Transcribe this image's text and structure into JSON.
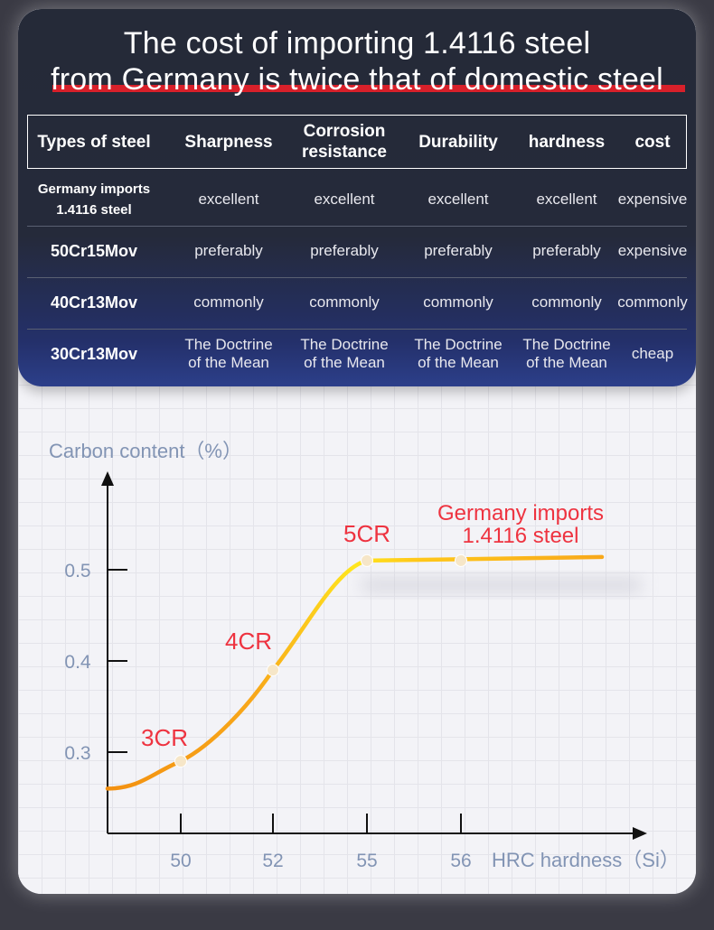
{
  "title": {
    "line1": "The cost of importing 1.4116 steel",
    "line2": "from Germany is twice that of domestic steel"
  },
  "table": {
    "headers": [
      "Types of steel",
      "Sharpness",
      "Corrosion\nresistance",
      "Durability",
      "hardness",
      "cost"
    ],
    "rows": [
      {
        "type": "Germany imports\n1.4116 steel",
        "values": [
          "excellent",
          "excellent",
          "excellent",
          "excellent",
          "expensive"
        ]
      },
      {
        "type": "50Cr15Mov",
        "values": [
          "preferably",
          "preferably",
          "preferably",
          "preferably",
          "expensive"
        ]
      },
      {
        "type": "40Cr13Mov",
        "values": [
          "commonly",
          "commonly",
          "commonly",
          "commonly",
          "commonly"
        ]
      },
      {
        "type": "30Cr13Mov",
        "values": [
          "The Doctrine\nof the Mean",
          "The Doctrine\nof the Mean",
          "The Doctrine\nof the Mean",
          "The Doctrine\nof the Mean",
          "cheap"
        ]
      }
    ]
  },
  "colors": {
    "accent_red": "#d8202a",
    "label_red": "#ee3340",
    "axis_text": "#8294b4",
    "curve_start": "#f39010",
    "curve_mid": "#ffee20",
    "curve_end": "#f8a81a"
  },
  "chart_data": {
    "type": "line",
    "ylabel": "Carbon content（%）",
    "xlabel": "HRC hardness（Si）",
    "x_ticks": [
      "50",
      "52",
      "55",
      "56"
    ],
    "y_ticks": [
      "0.3",
      "0.4",
      "0.5"
    ],
    "points": [
      {
        "x": "50",
        "y": 0.29,
        "label": "3CR"
      },
      {
        "x": "52",
        "y": 0.39,
        "label": "4CR"
      },
      {
        "x": "55",
        "y": 0.51,
        "label": "5CR"
      },
      {
        "x": "56",
        "y": 0.51,
        "label": "Germany imports\n1.4116 steel"
      }
    ],
    "curve_start_y": 0.26,
    "grid": false
  }
}
